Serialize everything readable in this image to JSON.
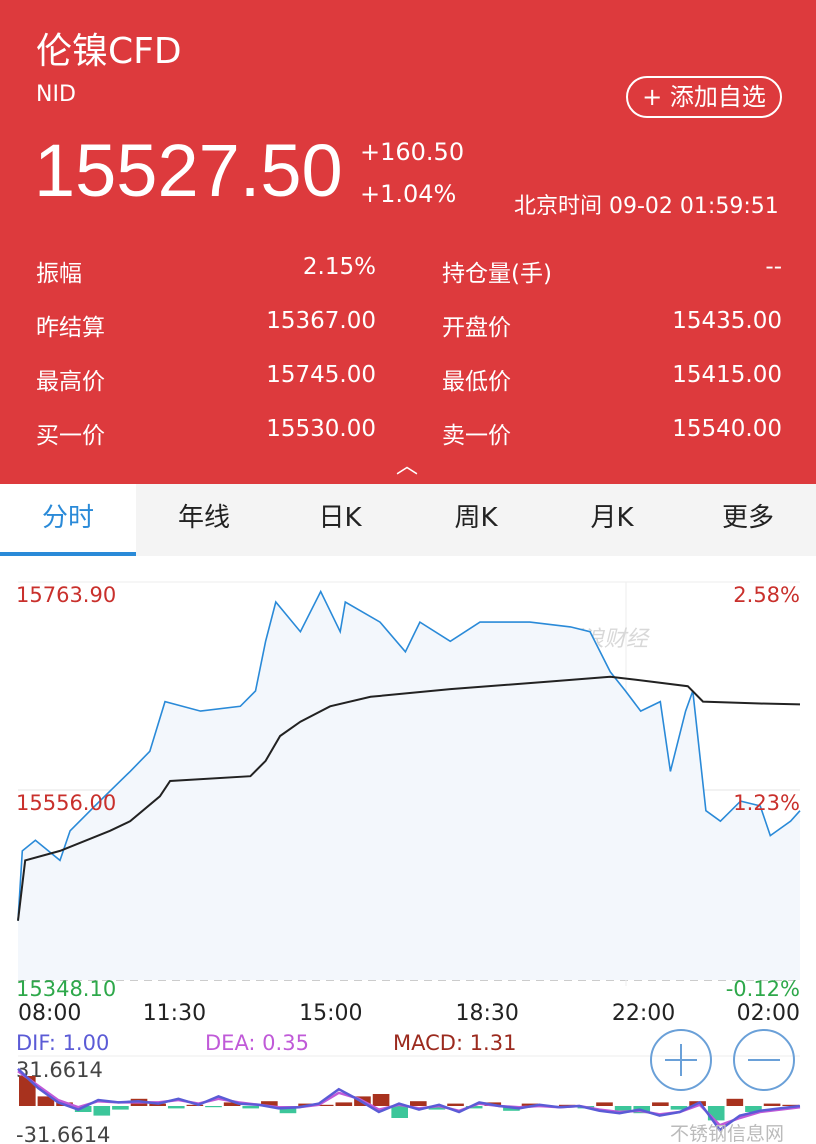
{
  "header": {
    "title": "伦镍CFD",
    "code": "NID",
    "add_button": "+ 添加自选",
    "price": "15527.50",
    "change": "+160.50",
    "change_pct": "+1.04%",
    "time": "北京时间 09-02 01:59:51",
    "collapse_icon": "chevron-up-icon"
  },
  "stats": [
    {
      "label": "振幅",
      "value": "2.15%"
    },
    {
      "label": "持仓量(手)",
      "value": "--"
    },
    {
      "label": "昨结算",
      "value": "15367.00"
    },
    {
      "label": "开盘价",
      "value": "15435.00"
    },
    {
      "label": "最高价",
      "value": "15745.00"
    },
    {
      "label": "最低价",
      "value": "15415.00"
    },
    {
      "label": "买一价",
      "value": "15530.00"
    },
    {
      "label": "卖一价",
      "value": "15540.00"
    }
  ],
  "tabs": [
    {
      "label": "分时",
      "active": true
    },
    {
      "label": "年线"
    },
    {
      "label": "日K"
    },
    {
      "label": "周K"
    },
    {
      "label": "月K"
    },
    {
      "label": "更多"
    }
  ],
  "colors": {
    "header": "#dd3a3d",
    "price_line": "#2a8ad8",
    "avg_line": "#222222",
    "up": "#c9302c",
    "down": "#2ea84a",
    "dif": "#5b5bd6",
    "dea": "#c05ad8",
    "macd": "#9b2a1e",
    "hist_up": "#a8321e",
    "hist_down": "#3cc69a"
  },
  "watermark": "新浪财经",
  "footer_watermark": "不锈钢信息网",
  "zoom_in_icon": "plus-circle-icon",
  "zoom_out_icon": "minus-circle-icon",
  "chart_data": {
    "type": "line",
    "y_left_labels": [
      "15763.90",
      "15556.00",
      "15348.10"
    ],
    "y_right_labels": [
      "2.58%",
      "1.23%",
      "-0.12%"
    ],
    "ylim": [
      15348.1,
      15763.9
    ],
    "x_ticks": [
      "08:00",
      "11:30",
      "15:00",
      "18:30",
      "22:00",
      "02:00"
    ],
    "series": [
      {
        "key": "price",
        "points": [
          [
            "08:00",
            15410
          ],
          [
            "08:06",
            15483
          ],
          [
            "08:24",
            15494
          ],
          [
            "08:58",
            15473
          ],
          [
            "09:12",
            15504
          ],
          [
            "09:53",
            15535
          ],
          [
            "10:35",
            15566
          ],
          [
            "11:02",
            15587
          ],
          [
            "11:23",
            15639
          ],
          [
            "12:12",
            15629
          ],
          [
            "13:07",
            15634
          ],
          [
            "13:28",
            15650
          ],
          [
            "13:42",
            15702
          ],
          [
            "13:56",
            15743
          ],
          [
            "14:30",
            15712
          ],
          [
            "14:58",
            15754
          ],
          [
            "15:25",
            15712
          ],
          [
            "15:32",
            15743
          ],
          [
            "16:20",
            15722
          ],
          [
            "16:55",
            15691
          ],
          [
            "17:15",
            15722
          ],
          [
            "17:57",
            15702
          ],
          [
            "18:38",
            15722
          ],
          [
            "19:47",
            15722
          ],
          [
            "20:43",
            15717
          ],
          [
            "21:10",
            15712
          ],
          [
            "21:38",
            15670
          ],
          [
            "21:59",
            15650
          ],
          [
            "22:20",
            15629
          ],
          [
            "22:47",
            15639
          ],
          [
            "23:01",
            15566
          ],
          [
            "23:22",
            15629
          ],
          [
            "23:32",
            15650
          ],
          [
            "23:50",
            15525
          ],
          [
            "00:10",
            15514
          ],
          [
            "00:38",
            15535
          ],
          [
            "01:05",
            15530
          ],
          [
            "01:19",
            15499
          ],
          [
            "01:47",
            15514
          ],
          [
            "02:00",
            15525
          ]
        ]
      },
      {
        "key": "average",
        "points": [
          [
            "08:00",
            15410
          ],
          [
            "08:10",
            15473
          ],
          [
            "08:58",
            15483
          ],
          [
            "10:07",
            15504
          ],
          [
            "10:35",
            15514
          ],
          [
            "11:16",
            15540
          ],
          [
            "11:30",
            15556
          ],
          [
            "13:21",
            15561
          ],
          [
            "13:42",
            15577
          ],
          [
            "14:02",
            15603
          ],
          [
            "14:30",
            15618
          ],
          [
            "15:11",
            15634
          ],
          [
            "16:07",
            15644
          ],
          [
            "17:57",
            15652
          ],
          [
            "20:15",
            15660
          ],
          [
            "21:38",
            15665
          ],
          [
            "22:33",
            15660
          ],
          [
            "23:25",
            15655
          ],
          [
            "23:46",
            15639
          ],
          [
            "01:05",
            15637
          ],
          [
            "02:00",
            15636
          ]
        ]
      }
    ]
  },
  "macd": {
    "dif_label": "DIF: 1.00",
    "dea_label": "DEA: 0.35",
    "macd_label": "MACD: 1.31",
    "max_label": "31.6614",
    "min_label": "-31.6614",
    "range": [
      -31.6614,
      31.6614
    ],
    "histogram": [
      25,
      8,
      3,
      -5,
      -8,
      -3,
      6,
      2,
      -2,
      1,
      -1,
      3,
      -2,
      4,
      -6,
      2,
      1,
      3,
      8,
      10,
      -10,
      4,
      -3,
      2,
      -2,
      3,
      -4,
      2,
      -1,
      1,
      -2,
      3,
      -4,
      -6,
      3,
      -3,
      4,
      -12,
      6,
      -5,
      2,
      1
    ],
    "dif": [
      31,
      15,
      3,
      -3,
      5,
      3,
      4,
      2,
      6,
      1,
      8,
      2,
      1,
      -2,
      -1,
      2,
      14,
      5,
      -5,
      2,
      -3,
      1,
      -5,
      3,
      0,
      -2,
      1,
      -1,
      0,
      -4,
      -6,
      -3,
      -8,
      -5,
      3,
      -20,
      -8,
      -4,
      -2,
      0
    ],
    "dea": [
      29,
      17,
      5,
      -1,
      4,
      3,
      3,
      3,
      5,
      2,
      6,
      3,
      1,
      -1,
      -1,
      1,
      11,
      6,
      -3,
      1,
      -2,
      0,
      -4,
      2,
      0,
      -1,
      0,
      -1,
      0,
      -3,
      -5,
      -4,
      -7,
      -5,
      1,
      -16,
      -10,
      -5,
      -3,
      -1
    ]
  }
}
